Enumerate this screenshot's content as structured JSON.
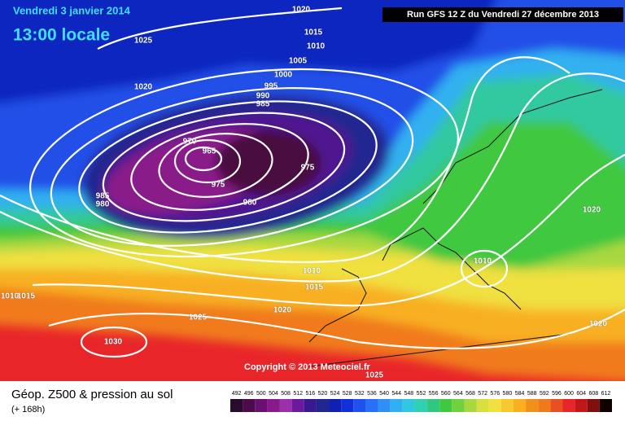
{
  "header": {
    "date": "Vendredi 3 janvier 2014",
    "time": "13:00 locale",
    "run": "Run GFS 12 Z du Vendredi 27 décembre 2013"
  },
  "copyright": "Copyright © 2013 Meteociel.fr",
  "isobar_labels": [
    "1020",
    "1025",
    "1015",
    "1010",
    "1005",
    "1000",
    "995",
    "990",
    "985",
    "1020",
    "970",
    "965",
    "975",
    "975",
    "985",
    "980",
    "980",
    "1020",
    "1010",
    "1010",
    "1015",
    "1020",
    "1025",
    "1030",
    "1025",
    "1020",
    "1010",
    "1015"
  ],
  "footer": {
    "title": "Géop. Z500 & pression au sol",
    "lead": "(+ 168h)"
  },
  "legend": {
    "labels": [
      492,
      496,
      500,
      504,
      508,
      512,
      516,
      520,
      524,
      528,
      532,
      536,
      540,
      544,
      548,
      552,
      556,
      560,
      564,
      568,
      572,
      576,
      580,
      584,
      588,
      592,
      596,
      600,
      604,
      608,
      612
    ],
    "colors": [
      "#2a0a2e",
      "#4a0c4a",
      "#6a1070",
      "#8a1a8c",
      "#9c30a8",
      "#6a1a9a",
      "#3a1890",
      "#202890",
      "#1020b0",
      "#1030d8",
      "#2050f0",
      "#2870f8",
      "#3090f8",
      "#30b0f0",
      "#30c8e0",
      "#30d0b0",
      "#30c880",
      "#40c840",
      "#70d040",
      "#a8d840",
      "#d8e040",
      "#f0e040",
      "#f8c830",
      "#f8b020",
      "#f09018",
      "#f07a1a",
      "#e85020",
      "#e8262a",
      "#c01818",
      "#801010",
      "#100000"
    ]
  }
}
